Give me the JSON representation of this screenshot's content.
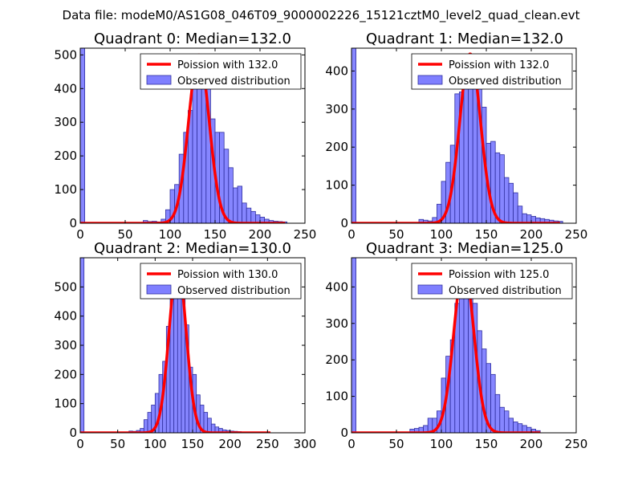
{
  "suptitle": "Data file: modeM0/AS1G08_046T09_9000002226_15121cztM0_level2_quad_clean.evt",
  "colors": {
    "bar_fill": "#7f7fff",
    "bar_edge": "#3030a0",
    "poisson_line": "#ff0000",
    "axes": "#000000",
    "background": "#ffffff"
  },
  "chart_data": [
    {
      "type": "bar",
      "title": "Quadrant 0: Median=132.0",
      "xlim": [
        0,
        250
      ],
      "ylim": [
        0,
        520
      ],
      "xticks": [
        0,
        50,
        100,
        150,
        200,
        250
      ],
      "yticks": [
        0,
        100,
        200,
        300,
        400,
        500
      ],
      "legend": [
        "Poission with 132.0",
        "Observed distribution"
      ],
      "bin_width": 5,
      "bins": [
        [
          0,
          520
        ],
        [
          70,
          8
        ],
        [
          75,
          5
        ],
        [
          80,
          6
        ],
        [
          85,
          4
        ],
        [
          90,
          12
        ],
        [
          95,
          40
        ],
        [
          100,
          100
        ],
        [
          105,
          115
        ],
        [
          110,
          205
        ],
        [
          115,
          270
        ],
        [
          120,
          335
        ],
        [
          125,
          450
        ],
        [
          130,
          480
        ],
        [
          135,
          500
        ],
        [
          140,
          450
        ],
        [
          145,
          310
        ],
        [
          150,
          270
        ],
        [
          155,
          270
        ],
        [
          160,
          220
        ],
        [
          165,
          165
        ],
        [
          170,
          105
        ],
        [
          175,
          110
        ],
        [
          180,
          60
        ],
        [
          185,
          45
        ],
        [
          190,
          35
        ],
        [
          195,
          25
        ],
        [
          200,
          18
        ],
        [
          205,
          12
        ],
        [
          210,
          8
        ],
        [
          215,
          6
        ],
        [
          220,
          5
        ],
        [
          225,
          4
        ]
      ],
      "poisson_mean": 132.0,
      "poisson_peak": 500,
      "poisson_range": [
        0,
        228
      ]
    },
    {
      "type": "bar",
      "title": "Quadrant 1: Median=132.0",
      "xlim": [
        0,
        250
      ],
      "ylim": [
        0,
        460
      ],
      "xticks": [
        0,
        50,
        100,
        150,
        200,
        250
      ],
      "yticks": [
        0,
        100,
        200,
        300,
        400
      ],
      "legend": [
        "Poission with 132.0",
        "Observed distribution"
      ],
      "bin_width": 5,
      "bins": [
        [
          0,
          460
        ],
        [
          75,
          10
        ],
        [
          80,
          8
        ],
        [
          85,
          6
        ],
        [
          90,
          15
        ],
        [
          95,
          50
        ],
        [
          100,
          110
        ],
        [
          105,
          160
        ],
        [
          110,
          205
        ],
        [
          115,
          340
        ],
        [
          120,
          345
        ],
        [
          125,
          375
        ],
        [
          130,
          410
        ],
        [
          135,
          415
        ],
        [
          140,
          400
        ],
        [
          145,
          305
        ],
        [
          150,
          210
        ],
        [
          155,
          215
        ],
        [
          160,
          185
        ],
        [
          165,
          180
        ],
        [
          170,
          120
        ],
        [
          175,
          105
        ],
        [
          180,
          80
        ],
        [
          185,
          45
        ],
        [
          190,
          25
        ],
        [
          195,
          22
        ],
        [
          200,
          18
        ],
        [
          205,
          14
        ],
        [
          210,
          12
        ],
        [
          215,
          10
        ],
        [
          220,
          8
        ],
        [
          225,
          6
        ],
        [
          230,
          5
        ]
      ],
      "poisson_mean": 132.0,
      "poisson_peak": 445,
      "poisson_range": [
        0,
        232
      ]
    },
    {
      "type": "bar",
      "title": "Quadrant 2: Median=130.0",
      "xlim": [
        0,
        300
      ],
      "ylim": [
        0,
        600
      ],
      "xticks": [
        0,
        50,
        100,
        150,
        200,
        250,
        300
      ],
      "yticks": [
        0,
        100,
        200,
        300,
        400,
        500
      ],
      "legend": [
        "Poission with 130.0",
        "Observed distribution"
      ],
      "bin_width": 5,
      "bins": [
        [
          0,
          600
        ],
        [
          65,
          6
        ],
        [
          70,
          5
        ],
        [
          75,
          8
        ],
        [
          80,
          15
        ],
        [
          85,
          45
        ],
        [
          90,
          70
        ],
        [
          95,
          95
        ],
        [
          100,
          135
        ],
        [
          105,
          200
        ],
        [
          110,
          245
        ],
        [
          115,
          365
        ],
        [
          120,
          495
        ],
        [
          125,
          500
        ],
        [
          130,
          575
        ],
        [
          135,
          475
        ],
        [
          140,
          370
        ],
        [
          145,
          225
        ],
        [
          150,
          200
        ],
        [
          155,
          130
        ],
        [
          160,
          95
        ],
        [
          165,
          70
        ],
        [
          170,
          50
        ],
        [
          175,
          30
        ],
        [
          180,
          20
        ],
        [
          185,
          15
        ],
        [
          190,
          10
        ],
        [
          195,
          8
        ],
        [
          200,
          6
        ],
        [
          205,
          5
        ],
        [
          210,
          4
        ]
      ],
      "poisson_mean": 130.0,
      "poisson_peak": 575,
      "poisson_range": [
        0,
        254
      ]
    },
    {
      "type": "bar",
      "title": "Quadrant 3: Median=125.0",
      "xlim": [
        0,
        250
      ],
      "ylim": [
        0,
        480
      ],
      "xticks": [
        0,
        50,
        100,
        150,
        200,
        250
      ],
      "yticks": [
        0,
        100,
        200,
        300,
        400
      ],
      "legend": [
        "Poission with 125.0",
        "Observed distribution"
      ],
      "bin_width": 5,
      "bins": [
        [
          0,
          480
        ],
        [
          65,
          10
        ],
        [
          70,
          12
        ],
        [
          75,
          15
        ],
        [
          80,
          20
        ],
        [
          85,
          40
        ],
        [
          90,
          40
        ],
        [
          95,
          60
        ],
        [
          100,
          150
        ],
        [
          105,
          210
        ],
        [
          110,
          255
        ],
        [
          115,
          355
        ],
        [
          120,
          400
        ],
        [
          125,
          425
        ],
        [
          130,
          375
        ],
        [
          135,
          355
        ],
        [
          140,
          280
        ],
        [
          145,
          230
        ],
        [
          150,
          190
        ],
        [
          155,
          160
        ],
        [
          160,
          105
        ],
        [
          165,
          70
        ],
        [
          170,
          60
        ],
        [
          175,
          40
        ],
        [
          180,
          30
        ],
        [
          185,
          25
        ],
        [
          190,
          20
        ],
        [
          195,
          15
        ],
        [
          200,
          10
        ],
        [
          205,
          6
        ]
      ],
      "poisson_mean": 125.0,
      "poisson_peak": 455,
      "poisson_range": [
        0,
        210
      ]
    }
  ]
}
